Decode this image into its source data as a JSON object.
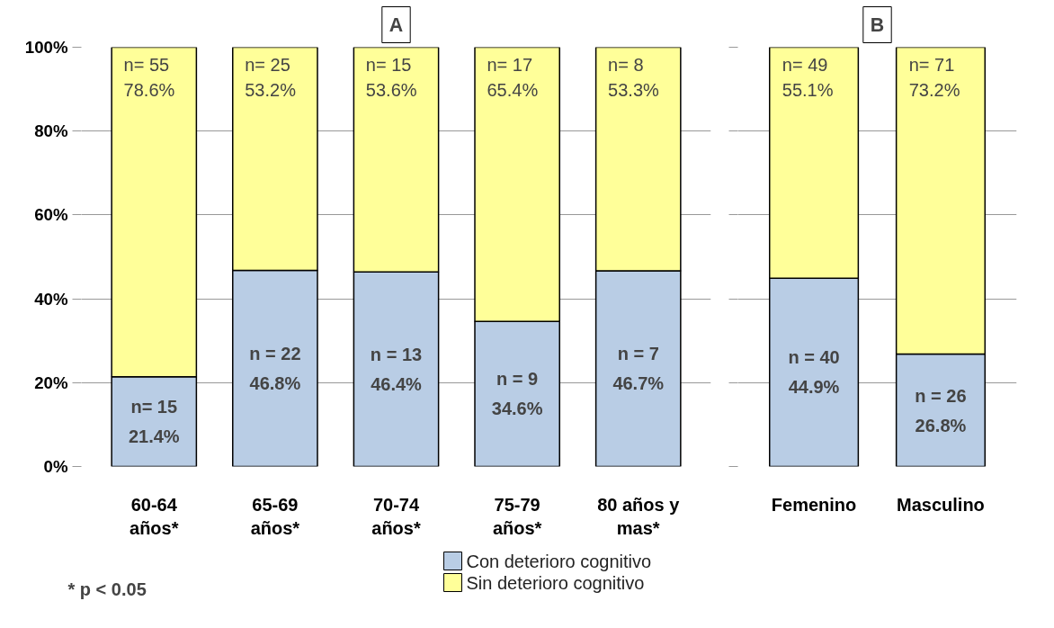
{
  "chart_data": [
    {
      "type": "bar",
      "title": "A",
      "stacked": true,
      "categories": [
        "60-64\naños*",
        "65-69\naños*",
        "70-74\naños*",
        "75-79\naños*",
        "80 años y\nmas*"
      ],
      "series": [
        {
          "name": "Con deterioro cognitivo",
          "color": "#b9cde5",
          "values": [
            21.4,
            46.8,
            46.4,
            34.6,
            46.7
          ],
          "value_labels": [
            "n= 15\n21.4%",
            "n = 22\n46.8%",
            "n = 13\n46.4%",
            "n = 9\n34.6%",
            "n = 7\n46.7%"
          ]
        },
        {
          "name": "Sin deterioro cognitivo",
          "color": "#ffff99",
          "values": [
            78.6,
            53.2,
            53.6,
            65.4,
            53.3
          ],
          "value_labels": [
            "n= 55\n78.6%",
            "n= 25\n53.2%",
            "n= 15\n53.6%",
            "n= 17\n65.4%",
            "n= 8\n53.3%"
          ]
        }
      ],
      "ylim": [
        0,
        100
      ],
      "yticks": [
        {
          "value": 0,
          "label": "0%"
        },
        {
          "value": 20,
          "label": "20%"
        },
        {
          "value": 40,
          "label": "40%"
        },
        {
          "value": 60,
          "label": "60%"
        },
        {
          "value": 80,
          "label": "80%"
        },
        {
          "value": 100,
          "label": "100%"
        }
      ],
      "grid": "y",
      "legend": "bottom",
      "annotations": [
        "* p < 0.05"
      ]
    },
    {
      "type": "bar",
      "title": "B",
      "stacked": true,
      "categories": [
        "Femenino",
        "Masculino"
      ],
      "series": [
        {
          "color": "#b9cde5",
          "values": [
            44.9,
            26.8
          ],
          "value_labels": [
            "n = 40\n44.9%",
            "n = 26\n26.8%"
          ]
        },
        {
          "color": "#ffff99",
          "values": [
            55.1,
            73.2
          ],
          "value_labels": [
            "n= 49\n55.1%",
            "n= 71\n73.2%"
          ]
        }
      ],
      "ylim": [
        0,
        100
      ],
      "yticks": [
        {
          "value": 0,
          "label": null
        },
        {
          "value": 20,
          "label": null
        },
        {
          "value": 40,
          "label": null
        },
        {
          "value": 60,
          "label": null
        },
        {
          "value": 80,
          "label": null
        },
        {
          "value": 100,
          "label": null
        }
      ],
      "grid": "y",
      "tick_labels": "x"
    }
  ]
}
